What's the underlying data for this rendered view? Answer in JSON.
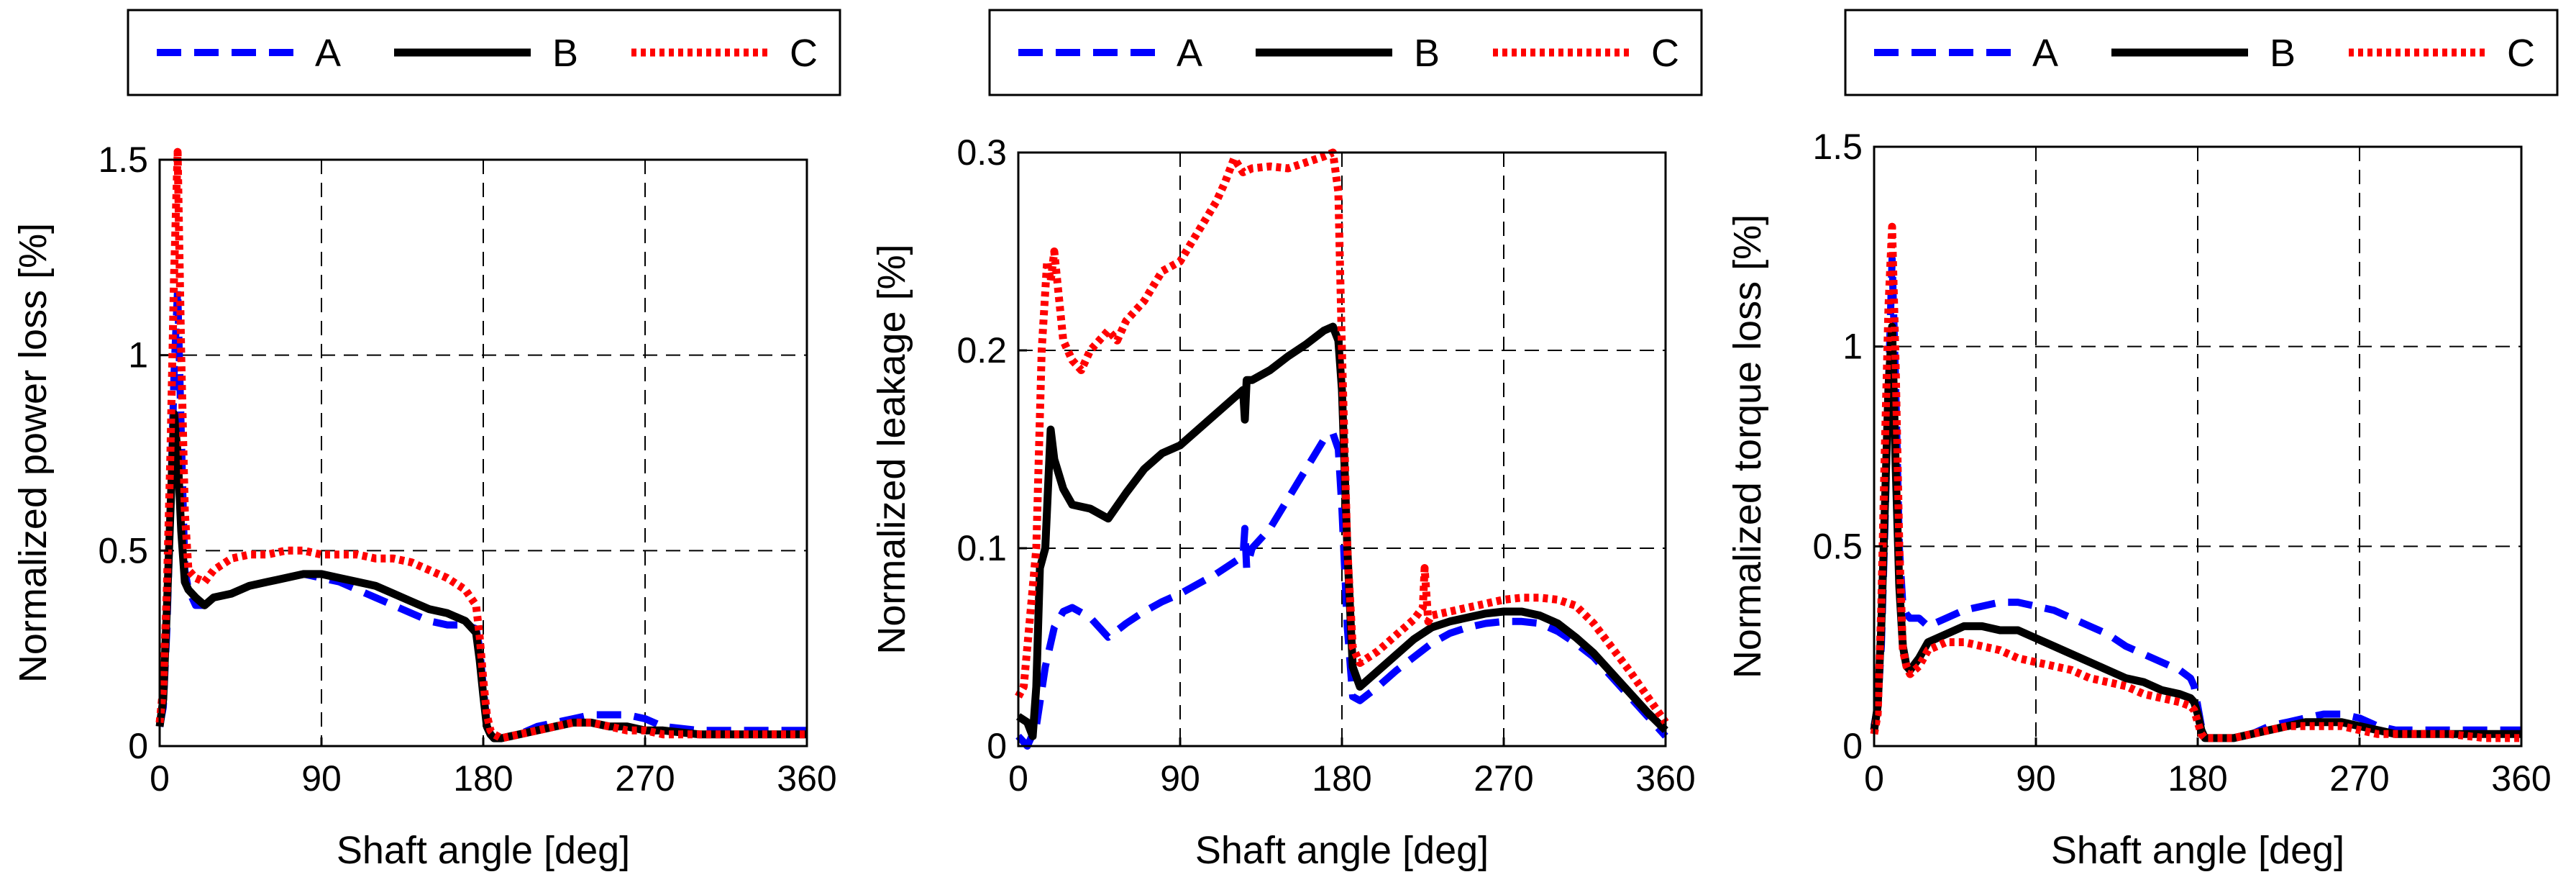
{
  "chart_data": [
    {
      "type": "line",
      "xlabel": "Shaft angle [deg]",
      "ylabel": "Normalized power loss [%]",
      "xlim": [
        0,
        360
      ],
      "ylim": [
        0,
        1.5
      ],
      "xticks": [
        0,
        90,
        180,
        270,
        360
      ],
      "xtick_labels": [
        "0",
        "90",
        "180",
        "270",
        "360"
      ],
      "yticks": [
        0,
        0.5,
        1,
        1.5
      ],
      "ytick_labels": [
        "0",
        "0.5",
        "1",
        "1.5"
      ],
      "grid": true,
      "legend_position": "above",
      "series": [
        {
          "name": "A",
          "color": "#0000ff",
          "style": "dashed",
          "x": [
            0,
            2,
            4,
            6,
            8,
            10,
            12,
            14,
            16,
            20,
            25,
            30,
            40,
            50,
            60,
            70,
            80,
            90,
            100,
            110,
            120,
            130,
            140,
            150,
            160,
            170,
            176,
            178,
            180,
            182,
            184,
            186,
            190,
            200,
            210,
            220,
            230,
            240,
            250,
            260,
            270,
            280,
            300,
            320,
            340,
            360
          ],
          "y": [
            0.05,
            0.1,
            0.3,
            0.6,
            0.95,
            1.17,
            0.8,
            0.45,
            0.4,
            0.36,
            0.36,
            0.38,
            0.39,
            0.41,
            0.42,
            0.43,
            0.44,
            0.43,
            0.42,
            0.4,
            0.38,
            0.36,
            0.34,
            0.32,
            0.31,
            0.31,
            0.3,
            0.25,
            0.15,
            0.06,
            0.03,
            0.02,
            0.02,
            0.03,
            0.05,
            0.06,
            0.07,
            0.08,
            0.08,
            0.08,
            0.07,
            0.05,
            0.04,
            0.04,
            0.04,
            0.04
          ]
        },
        {
          "name": "B",
          "color": "#000000",
          "style": "solid",
          "x": [
            0,
            2,
            4,
            6,
            8,
            10,
            12,
            14,
            16,
            20,
            25,
            30,
            40,
            50,
            60,
            70,
            80,
            90,
            100,
            110,
            120,
            130,
            140,
            150,
            160,
            170,
            176,
            178,
            180,
            182,
            184,
            186,
            190,
            200,
            210,
            220,
            230,
            240,
            250,
            260,
            270,
            280,
            300,
            320,
            340,
            360
          ],
          "y": [
            0.05,
            0.12,
            0.35,
            0.6,
            0.85,
            0.75,
            0.55,
            0.42,
            0.4,
            0.38,
            0.36,
            0.38,
            0.39,
            0.41,
            0.42,
            0.43,
            0.44,
            0.44,
            0.43,
            0.42,
            0.41,
            0.39,
            0.37,
            0.35,
            0.34,
            0.32,
            0.29,
            0.22,
            0.13,
            0.05,
            0.03,
            0.02,
            0.02,
            0.03,
            0.04,
            0.05,
            0.06,
            0.06,
            0.05,
            0.05,
            0.04,
            0.04,
            0.03,
            0.03,
            0.03,
            0.03
          ]
        },
        {
          "name": "C",
          "color": "#ff0000",
          "style": "dotted",
          "x": [
            0,
            2,
            4,
            6,
            8,
            10,
            12,
            14,
            16,
            20,
            25,
            30,
            40,
            50,
            60,
            70,
            80,
            90,
            100,
            110,
            120,
            130,
            140,
            150,
            160,
            170,
            176,
            178,
            180,
            182,
            184,
            186,
            190,
            200,
            210,
            220,
            230,
            240,
            250,
            260,
            270,
            280,
            300,
            320,
            340,
            360
          ],
          "y": [
            0.06,
            0.15,
            0.4,
            0.75,
            1.2,
            1.52,
            1.0,
            0.6,
            0.45,
            0.43,
            0.42,
            0.45,
            0.48,
            0.49,
            0.49,
            0.5,
            0.5,
            0.49,
            0.49,
            0.49,
            0.48,
            0.48,
            0.47,
            0.45,
            0.43,
            0.4,
            0.36,
            0.28,
            0.17,
            0.08,
            0.04,
            0.03,
            0.02,
            0.03,
            0.04,
            0.05,
            0.06,
            0.06,
            0.05,
            0.04,
            0.04,
            0.03,
            0.03,
            0.03,
            0.03,
            0.03
          ]
        }
      ]
    },
    {
      "type": "line",
      "xlabel": "Shaft angle [deg]",
      "ylabel": "Normalized leakage [%]",
      "xlim": [
        0,
        360
      ],
      "ylim": [
        0,
        0.3
      ],
      "xticks": [
        0,
        90,
        180,
        270,
        360
      ],
      "xtick_labels": [
        "0",
        "90",
        "180",
        "270",
        "360"
      ],
      "yticks": [
        0,
        0.1,
        0.2,
        0.3
      ],
      "ytick_labels": [
        "0",
        "0.1",
        "0.2",
        "0.3"
      ],
      "grid": true,
      "legend_position": "above",
      "series": [
        {
          "name": "A",
          "color": "#0000ff",
          "style": "dashed",
          "x": [
            0,
            5,
            10,
            15,
            20,
            25,
            30,
            40,
            50,
            60,
            70,
            80,
            90,
            100,
            110,
            120,
            125,
            126,
            127,
            130,
            140,
            150,
            160,
            170,
            175,
            178,
            180,
            183,
            186,
            190,
            200,
            210,
            220,
            230,
            240,
            250,
            260,
            270,
            280,
            290,
            300,
            310,
            320,
            330,
            340,
            350,
            360
          ],
          "y": [
            0.005,
            0.0,
            0.01,
            0.04,
            0.06,
            0.068,
            0.07,
            0.065,
            0.055,
            0.062,
            0.068,
            0.073,
            0.077,
            0.082,
            0.087,
            0.093,
            0.096,
            0.11,
            0.09,
            0.1,
            0.11,
            0.125,
            0.14,
            0.155,
            0.158,
            0.15,
            0.12,
            0.06,
            0.025,
            0.023,
            0.03,
            0.038,
            0.045,
            0.052,
            0.057,
            0.06,
            0.062,
            0.063,
            0.063,
            0.062,
            0.058,
            0.052,
            0.045,
            0.035,
            0.025,
            0.015,
            0.005
          ]
        },
        {
          "name": "B",
          "color": "#000000",
          "style": "solid",
          "x": [
            0,
            5,
            8,
            10,
            12,
            15,
            18,
            20,
            25,
            30,
            40,
            50,
            60,
            70,
            80,
            90,
            100,
            110,
            120,
            125,
            126,
            127,
            130,
            140,
            150,
            160,
            170,
            175,
            178,
            180,
            183,
            186,
            190,
            200,
            210,
            220,
            230,
            240,
            250,
            260,
            270,
            280,
            290,
            300,
            310,
            320,
            330,
            340,
            350,
            360
          ],
          "y": [
            0.015,
            0.012,
            0.005,
            0.03,
            0.09,
            0.1,
            0.16,
            0.145,
            0.13,
            0.122,
            0.12,
            0.115,
            0.128,
            0.14,
            0.148,
            0.152,
            0.16,
            0.168,
            0.176,
            0.18,
            0.165,
            0.185,
            0.185,
            0.19,
            0.197,
            0.203,
            0.21,
            0.212,
            0.205,
            0.18,
            0.1,
            0.04,
            0.03,
            0.038,
            0.046,
            0.054,
            0.06,
            0.063,
            0.065,
            0.067,
            0.068,
            0.068,
            0.066,
            0.062,
            0.055,
            0.047,
            0.037,
            0.027,
            0.017,
            0.008
          ]
        },
        {
          "name": "C",
          "color": "#ff0000",
          "style": "dotted",
          "x": [
            0,
            3,
            6,
            10,
            13,
            16,
            18,
            20,
            25,
            30,
            35,
            40,
            50,
            55,
            60,
            70,
            80,
            90,
            100,
            110,
            115,
            120,
            125,
            130,
            140,
            150,
            160,
            170,
            175,
            178,
            180,
            183,
            186,
            190,
            200,
            210,
            220,
            225,
            226,
            228,
            230,
            240,
            250,
            260,
            270,
            280,
            290,
            300,
            310,
            320,
            330,
            340,
            350,
            360
          ],
          "y": [
            0.025,
            0.03,
            0.06,
            0.1,
            0.2,
            0.245,
            0.235,
            0.25,
            0.205,
            0.195,
            0.19,
            0.2,
            0.21,
            0.205,
            0.215,
            0.225,
            0.24,
            0.245,
            0.26,
            0.275,
            0.285,
            0.297,
            0.29,
            0.292,
            0.293,
            0.292,
            0.295,
            0.298,
            0.3,
            0.28,
            0.2,
            0.1,
            0.05,
            0.042,
            0.048,
            0.056,
            0.064,
            0.07,
            0.09,
            0.063,
            0.066,
            0.068,
            0.07,
            0.072,
            0.074,
            0.075,
            0.075,
            0.074,
            0.071,
            0.062,
            0.05,
            0.038,
            0.025,
            0.012
          ]
        }
      ]
    },
    {
      "type": "line",
      "xlabel": "Shaft angle [deg]",
      "ylabel": "Normalized torque loss [%]",
      "xlim": [
        0,
        360
      ],
      "ylim": [
        0,
        1.5
      ],
      "xticks": [
        0,
        90,
        180,
        270,
        360
      ],
      "xtick_labels": [
        "0",
        "90",
        "180",
        "270",
        "360"
      ],
      "yticks": [
        0,
        0.5,
        1,
        1.5
      ],
      "ytick_labels": [
        "0",
        "0.5",
        "1",
        "1.5"
      ],
      "grid": true,
      "legend_position": "above",
      "series": [
        {
          "name": "A",
          "color": "#0000ff",
          "style": "dashed",
          "x": [
            0,
            2,
            4,
            6,
            8,
            10,
            12,
            14,
            16,
            18,
            20,
            25,
            30,
            40,
            50,
            60,
            70,
            80,
            90,
            100,
            110,
            120,
            130,
            140,
            150,
            160,
            170,
            176,
            178,
            180,
            182,
            184,
            186,
            190,
            200,
            210,
            220,
            230,
            240,
            250,
            260,
            270,
            280,
            290,
            300,
            320,
            340,
            360
          ],
          "y": [
            0.05,
            0.1,
            0.25,
            0.55,
            0.9,
            1.22,
            0.9,
            0.5,
            0.35,
            0.33,
            0.32,
            0.32,
            0.3,
            0.32,
            0.34,
            0.35,
            0.36,
            0.36,
            0.35,
            0.34,
            0.32,
            0.3,
            0.28,
            0.25,
            0.23,
            0.21,
            0.19,
            0.17,
            0.15,
            0.1,
            0.05,
            0.03,
            0.02,
            0.02,
            0.02,
            0.03,
            0.05,
            0.06,
            0.07,
            0.08,
            0.08,
            0.07,
            0.05,
            0.04,
            0.04,
            0.04,
            0.04,
            0.04
          ]
        },
        {
          "name": "B",
          "color": "#000000",
          "style": "solid",
          "x": [
            0,
            2,
            4,
            6,
            8,
            10,
            12,
            14,
            16,
            18,
            20,
            25,
            30,
            40,
            50,
            60,
            70,
            80,
            90,
            100,
            110,
            120,
            130,
            140,
            150,
            160,
            170,
            176,
            178,
            180,
            182,
            184,
            186,
            190,
            200,
            210,
            220,
            230,
            240,
            250,
            260,
            270,
            280,
            290,
            300,
            320,
            340,
            360
          ],
          "y": [
            0.04,
            0.1,
            0.3,
            0.6,
            0.9,
            1.05,
            0.7,
            0.4,
            0.25,
            0.2,
            0.19,
            0.22,
            0.26,
            0.28,
            0.3,
            0.3,
            0.29,
            0.29,
            0.27,
            0.25,
            0.23,
            0.21,
            0.19,
            0.17,
            0.16,
            0.14,
            0.13,
            0.12,
            0.11,
            0.08,
            0.04,
            0.02,
            0.02,
            0.02,
            0.02,
            0.03,
            0.04,
            0.05,
            0.06,
            0.06,
            0.06,
            0.05,
            0.04,
            0.03,
            0.03,
            0.03,
            0.03,
            0.03
          ]
        },
        {
          "name": "C",
          "color": "#ff0000",
          "style": "dotted",
          "x": [
            0,
            2,
            4,
            6,
            8,
            10,
            12,
            14,
            16,
            18,
            20,
            25,
            30,
            40,
            50,
            60,
            70,
            80,
            90,
            100,
            110,
            120,
            130,
            140,
            150,
            160,
            170,
            176,
            178,
            180,
            182,
            184,
            186,
            190,
            200,
            210,
            220,
            230,
            240,
            250,
            260,
            270,
            280,
            290,
            300,
            320,
            340,
            360
          ],
          "y": [
            0.03,
            0.08,
            0.35,
            0.75,
            1.1,
            1.3,
            0.95,
            0.5,
            0.24,
            0.2,
            0.18,
            0.2,
            0.24,
            0.26,
            0.26,
            0.25,
            0.24,
            0.22,
            0.21,
            0.2,
            0.19,
            0.17,
            0.16,
            0.15,
            0.13,
            0.12,
            0.11,
            0.1,
            0.09,
            0.06,
            0.03,
            0.02,
            0.02,
            0.02,
            0.02,
            0.03,
            0.04,
            0.05,
            0.05,
            0.05,
            0.05,
            0.04,
            0.03,
            0.03,
            0.03,
            0.03,
            0.02,
            0.02
          ]
        }
      ]
    }
  ]
}
